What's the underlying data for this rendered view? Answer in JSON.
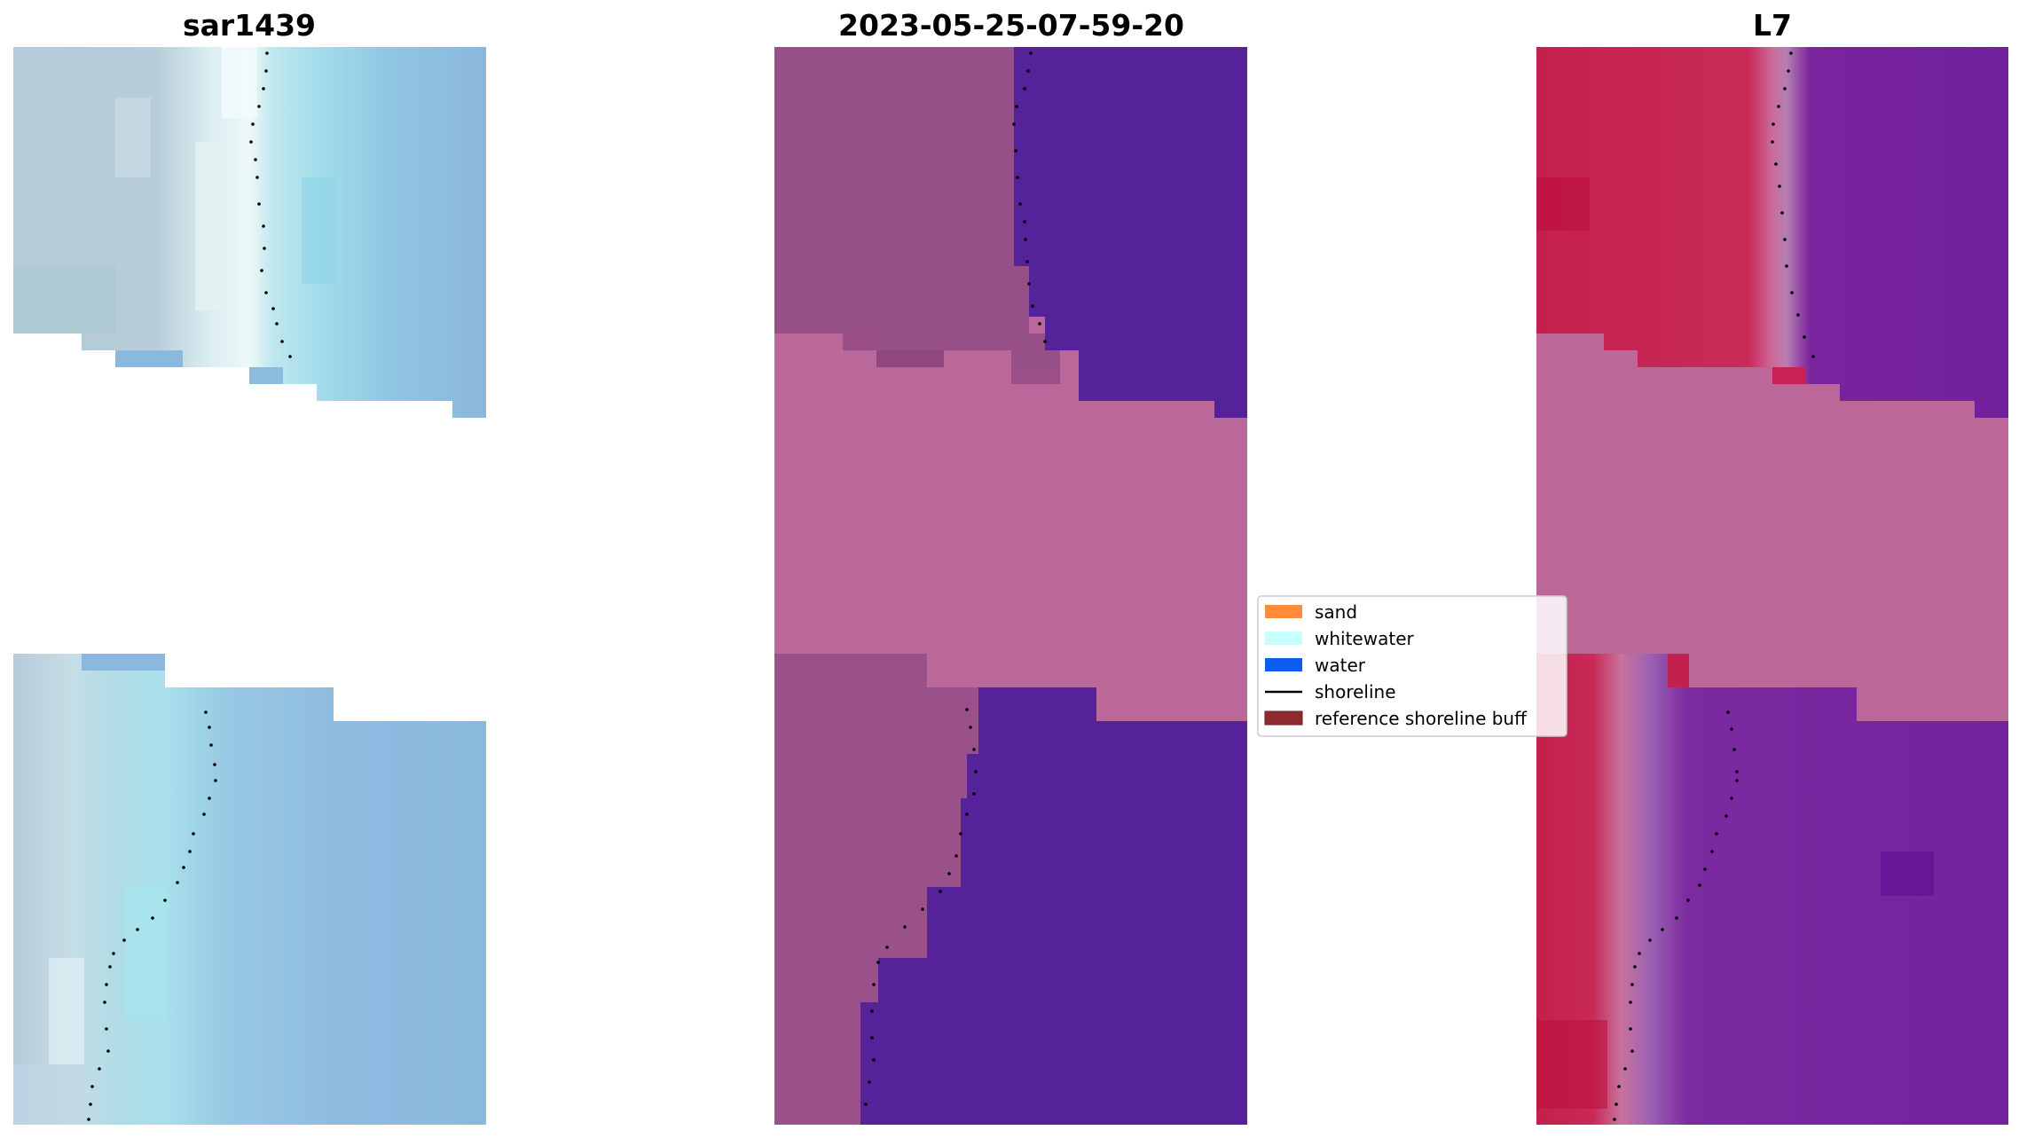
{
  "figure": {
    "panels": [
      {
        "title": "sar1439",
        "kind": "rgb-image",
        "description_colors": [
          "#a9c4d6",
          "#8ab7de",
          "#a6e3ec",
          "#e8f4f7"
        ]
      },
      {
        "title": "2023-05-25-07-59-20",
        "kind": "classified-image",
        "description_colors": [
          "#954f87",
          "#b9679a",
          "#55229a"
        ]
      },
      {
        "title": "L7",
        "kind": "index-image",
        "description_colors": [
          "#c11b46",
          "#bb6898",
          "#6b1b9a"
        ]
      }
    ],
    "legend": {
      "items": [
        {
          "label": "sand",
          "type": "patch",
          "color": "#ff8c3a"
        },
        {
          "label": "whitewater",
          "type": "patch",
          "color": "#c8ffff"
        },
        {
          "label": "water",
          "type": "patch",
          "color": "#0b5cf0"
        },
        {
          "label": "shoreline",
          "type": "line",
          "color": "#000000"
        },
        {
          "label": "reference shoreline buff",
          "type": "patch",
          "color": "#8e2a30"
        }
      ]
    }
  }
}
